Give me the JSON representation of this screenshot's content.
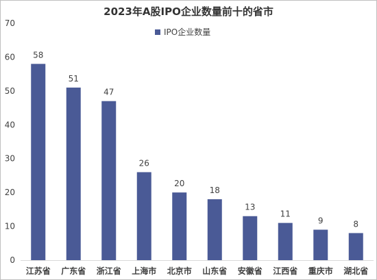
{
  "chart_data": {
    "type": "bar",
    "title": "2023年A股IPO企业数量前十的省市",
    "categories": [
      "江苏省",
      "广东省",
      "浙江省",
      "上海市",
      "北京市",
      "山东省",
      "安徽省",
      "江西省",
      "重庆市",
      "湖北省"
    ],
    "series": [
      {
        "name": "IPO企业数量",
        "values": [
          58,
          51,
          47,
          26,
          20,
          18,
          13,
          11,
          9,
          8
        ],
        "color": "#4a5a96"
      }
    ],
    "ylim": [
      0,
      70
    ],
    "yticks": [
      0,
      10,
      20,
      30,
      40,
      50,
      60,
      70
    ],
    "grid": false,
    "legend_position": "top-center",
    "data_labels": true
  }
}
